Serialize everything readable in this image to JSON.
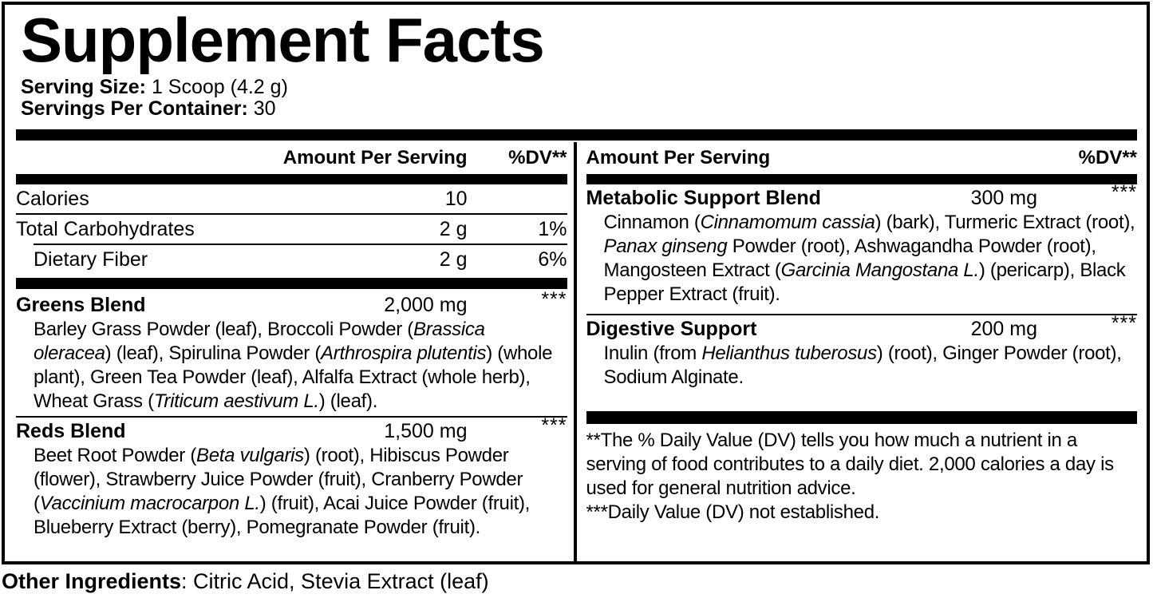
{
  "colors": {
    "text": "#000000",
    "background": "#ffffff"
  },
  "label": {
    "title": "Supplement Facts",
    "serving": {
      "size_label": "Serving Size:",
      "size_value": "1 Scoop (4.2 g)",
      "per_container_label": "Servings Per Container:",
      "per_container_value": "30"
    },
    "column_headers": {
      "amount": "Amount Per Serving",
      "dv": "%DV**"
    },
    "left_column": {
      "nutrients": [
        {
          "name": "Calories",
          "amount": "10",
          "dv": ""
        },
        {
          "name": "Total Carbohydrates",
          "amount": "2 g",
          "dv": "1%"
        },
        {
          "name": "Dietary Fiber",
          "amount": "2 g",
          "dv": "6%"
        }
      ],
      "blends": [
        {
          "name": "Greens Blend",
          "amount": "2,000 mg",
          "dv": "***",
          "ingredients": [
            {
              "t": "Barley Grass Powder (leaf), Broccoli Powder ("
            },
            {
              "t": "Brassica oleracea",
              "i": true
            },
            {
              "t": ") (leaf), Spirulina Powder ("
            },
            {
              "t": "Arthrospira plutentis",
              "i": true
            },
            {
              "t": ") (whole plant), Green Tea Powder (leaf), Alfalfa Extract (whole herb), Wheat Grass ("
            },
            {
              "t": "Triticum aestivum L.",
              "i": true
            },
            {
              "t": ") (leaf)."
            }
          ]
        },
        {
          "name": "Reds Blend",
          "amount": "1,500 mg",
          "dv": "***",
          "ingredients": [
            {
              "t": "Beet Root Powder ("
            },
            {
              "t": "Beta vulgaris",
              "i": true
            },
            {
              "t": ") (root), Hibiscus Powder (flower), Strawberry Juice Powder (fruit), Cranberry Powder ("
            },
            {
              "t": "Vaccinium macrocarpon L.",
              "i": true
            },
            {
              "t": ") (fruit), Acai Juice Powder (fruit), Blueberry Extract (berry), Pomegranate Powder (fruit)."
            }
          ]
        }
      ]
    },
    "right_column": {
      "blends": [
        {
          "name": "Metabolic Support Blend",
          "amount": "300 mg",
          "dv": "***",
          "ingredients": [
            {
              "t": "Cinnamon ("
            },
            {
              "t": "Cinnamomum cassia",
              "i": true
            },
            {
              "t": ") (bark), Turmeric Extract (root), "
            },
            {
              "t": "Panax ginseng",
              "i": true
            },
            {
              "t": " Powder (root), Ashwagandha Powder (root), Mangosteen Extract ("
            },
            {
              "t": "Garcinia Mangostana L.",
              "i": true
            },
            {
              "t": ") (pericarp), Black Pepper Extract (fruit)."
            }
          ]
        },
        {
          "name": "Digestive Support",
          "amount": "200 mg",
          "dv": "***",
          "ingredients": [
            {
              "t": "Inulin (from "
            },
            {
              "t": "Helianthus tuberosus",
              "i": true
            },
            {
              "t": ") (root), Ginger Powder (root), Sodium Alginate."
            }
          ]
        }
      ],
      "footnotes": [
        "**The % Daily Value (DV) tells you how much a nutrient in a serving of food contributes to a daily diet. 2,000 calories a day is used for general nutrition advice.",
        "***Daily Value (DV) not established."
      ]
    },
    "other_ingredients": {
      "label": "Other Ingredients",
      "value": ": Citric Acid, Stevia Extract (leaf)"
    }
  }
}
